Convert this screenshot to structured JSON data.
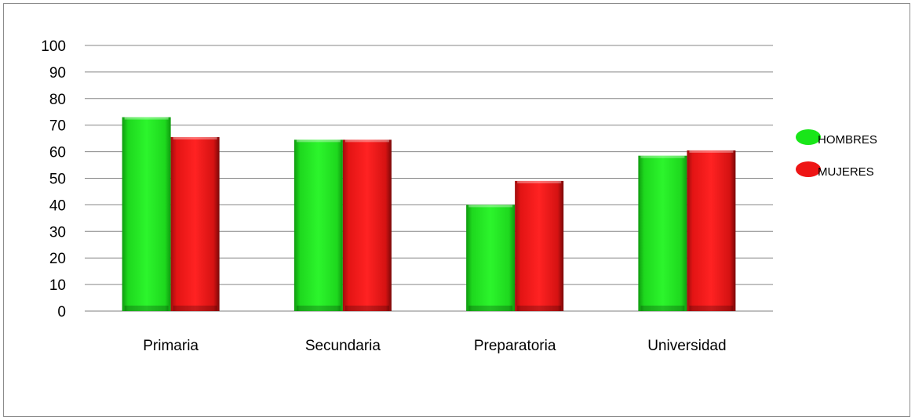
{
  "chart_data": {
    "type": "bar",
    "categories": [
      "Primaria",
      "Secundaria",
      "Preparatoria",
      "Universidad"
    ],
    "series": [
      {
        "name": "HOMBRES",
        "values": [
          73,
          64.5,
          40,
          58.5
        ],
        "color": "#19e619"
      },
      {
        "name": "MUJERES",
        "values": [
          65.5,
          64.5,
          49,
          60.5
        ],
        "color": "#ee1515"
      }
    ],
    "ylim": [
      0,
      100
    ],
    "yticks": [
      0,
      10,
      20,
      30,
      40,
      50,
      60,
      70,
      80,
      90,
      100
    ],
    "grid": true,
    "legend_position": "right"
  }
}
